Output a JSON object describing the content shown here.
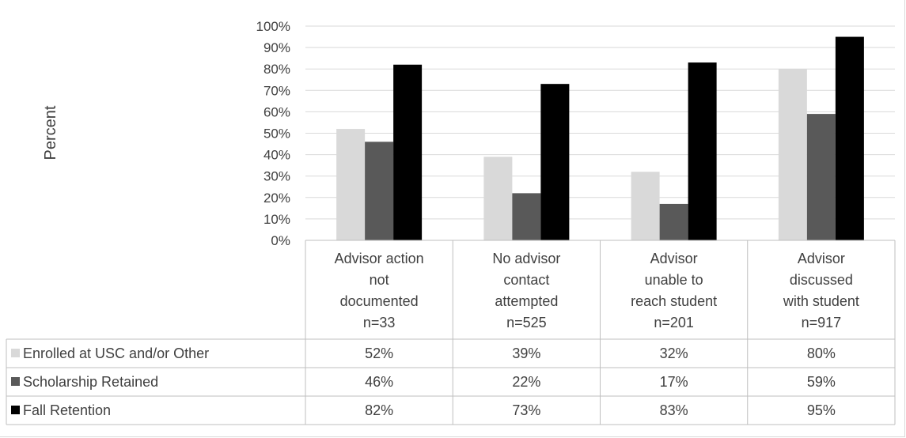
{
  "chart_data": {
    "type": "bar",
    "ylabel": "Percent",
    "ylim": [
      0,
      100
    ],
    "yticks": [
      "0%",
      "10%",
      "20%",
      "30%",
      "40%",
      "50%",
      "60%",
      "70%",
      "80%",
      "90%",
      "100%"
    ],
    "grid": true,
    "legend": "data-table-left",
    "categories": [
      [
        "Advisor action",
        "not",
        "documented",
        "n=33"
      ],
      [
        "No advisor",
        "contact",
        "attempted",
        "n=525"
      ],
      [
        "Advisor",
        "unable to",
        "reach student",
        "n=201"
      ],
      [
        "Advisor",
        "discussed",
        "with student",
        "n=917"
      ]
    ],
    "series": [
      {
        "name": "Enrolled at USC and/or Other",
        "color": "#d9d9d9",
        "values": [
          52,
          39,
          32,
          80
        ],
        "labels": [
          "52%",
          "39%",
          "32%",
          "80%"
        ]
      },
      {
        "name": "Scholarship Retained",
        "color": "#595959",
        "values": [
          46,
          22,
          17,
          59
        ],
        "labels": [
          "46%",
          "22%",
          "17%",
          "59%"
        ]
      },
      {
        "name": "Fall Retention",
        "color": "#000000",
        "values": [
          82,
          73,
          83,
          95
        ],
        "labels": [
          "82%",
          "73%",
          "83%",
          "95%"
        ]
      }
    ]
  }
}
